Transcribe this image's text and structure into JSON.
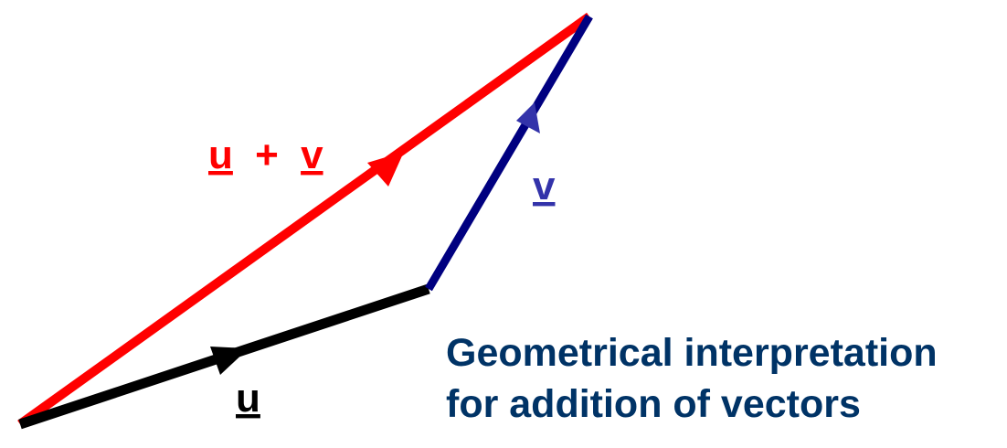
{
  "vectors": {
    "u": {
      "label": "u",
      "color": "#000000"
    },
    "v": {
      "label": "v",
      "color": "#000080"
    },
    "sum": {
      "part1": "u",
      "operator": "+",
      "part2": "v",
      "color": "#ff0000"
    },
    "v_arrowhead_color": "#3333aa"
  },
  "caption": {
    "line1": "Geometrical interpretation",
    "line2": "for addition of vectors",
    "color": "#003366"
  }
}
